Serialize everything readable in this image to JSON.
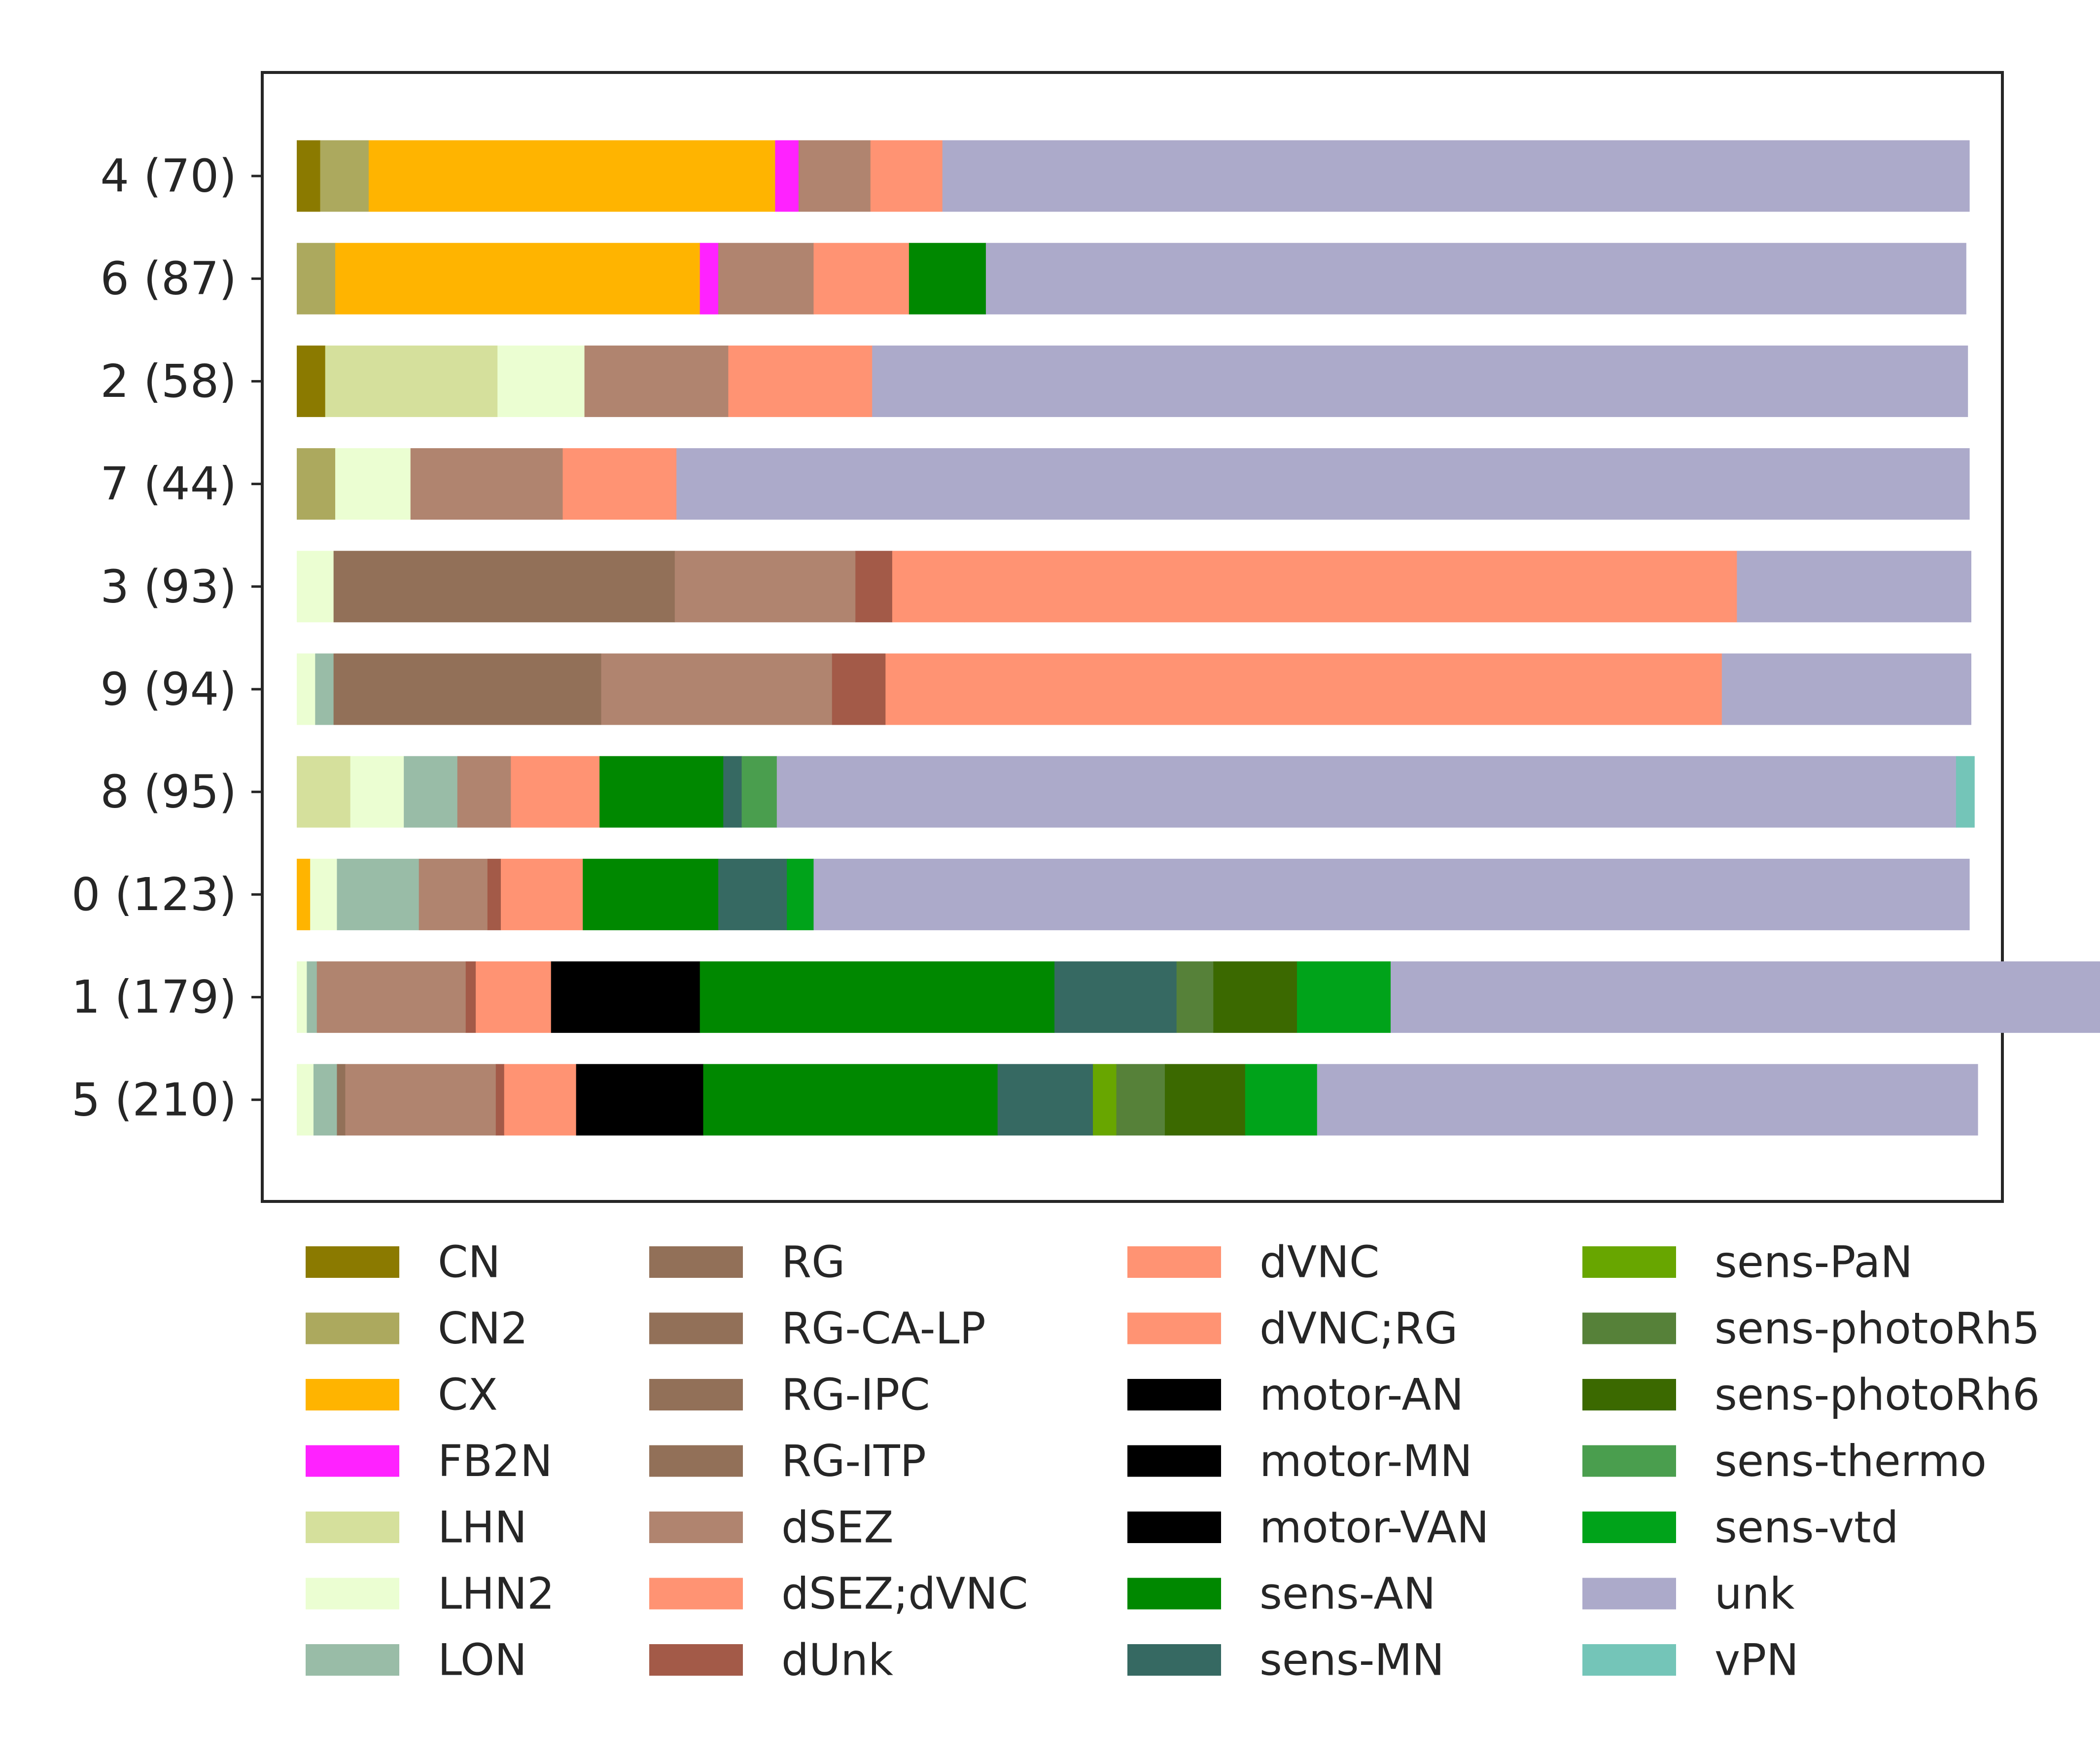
{
  "chart_data": {
    "type": "bar",
    "orientation": "horizontal",
    "stacked": true,
    "normalized": true,
    "categories": [
      "4 (70)",
      "6 (87)",
      "2 (58)",
      "7 (44)",
      "3 (93)",
      "9 (94)",
      "8 (95)",
      "0 (123)",
      "1 (179)",
      "5 (210)"
    ],
    "xlim": [
      0,
      1
    ],
    "legend_position": "bottom",
    "legend_columns": 4,
    "series": [
      {
        "name": "CN",
        "color": "#8b7a00",
        "values": [
          0.014,
          0,
          0.017,
          0,
          0,
          0,
          0,
          0,
          0,
          0
        ]
      },
      {
        "name": "CN2",
        "color": "#aca95e",
        "values": [
          0.029,
          0.023,
          0,
          0.023,
          0,
          0,
          0,
          0,
          0,
          0
        ]
      },
      {
        "name": "CX",
        "color": "#ffb400",
        "values": [
          0.243,
          0.218,
          0,
          0,
          0,
          0,
          0,
          0.008,
          0,
          0
        ]
      },
      {
        "name": "FB2N",
        "color": "#ff22ff",
        "values": [
          0.014,
          0.011,
          0,
          0,
          0,
          0,
          0,
          0,
          0,
          0
        ]
      },
      {
        "name": "LHN",
        "color": "#d5e09c",
        "values": [
          0,
          0,
          0.103,
          0,
          0,
          0,
          0.032,
          0,
          0,
          0
        ]
      },
      {
        "name": "LHN2",
        "color": "#ebfed2",
        "values": [
          0,
          0,
          0.052,
          0.045,
          0.022,
          0.011,
          0.032,
          0.016,
          0.006,
          0.01
        ]
      },
      {
        "name": "LON",
        "color": "#99bca7",
        "values": [
          0,
          0,
          0,
          0,
          0,
          0.011,
          0.032,
          0.049,
          0.006,
          0.014
        ]
      },
      {
        "name": "RG",
        "color": "#927058",
        "values": [
          0,
          0,
          0,
          0,
          0.204,
          0.16,
          0,
          0,
          0,
          0.005
        ]
      },
      {
        "name": "RG-CA-LP",
        "color": "#927058",
        "values": [
          0,
          0,
          0,
          0,
          0,
          0,
          0,
          0,
          0,
          0
        ]
      },
      {
        "name": "RG-IPC",
        "color": "#927058",
        "values": [
          0,
          0,
          0,
          0,
          0,
          0,
          0,
          0,
          0,
          0
        ]
      },
      {
        "name": "RG-ITP",
        "color": "#927058",
        "values": [
          0,
          0,
          0,
          0,
          0,
          0,
          0,
          0,
          0,
          0
        ]
      },
      {
        "name": "dSEZ",
        "color": "#b0846f",
        "values": [
          0.043,
          0.057,
          0.086,
          0.091,
          0.108,
          0.138,
          0.032,
          0.041,
          0.089,
          0.09
        ]
      },
      {
        "name": "dSEZ;dVNC",
        "color": "#ff9373",
        "values": [
          0,
          0,
          0,
          0,
          0,
          0,
          0,
          0,
          0,
          0
        ]
      },
      {
        "name": "dUnk",
        "color": "#a35a48",
        "values": [
          0,
          0,
          0,
          0,
          0.022,
          0.032,
          0,
          0.008,
          0.006,
          0.005
        ]
      },
      {
        "name": "dVNC",
        "color": "#ff9373",
        "values": [
          0.043,
          0.057,
          0.086,
          0.068,
          0.043,
          0.043,
          0.053,
          0.049,
          0.045,
          0.043
        ]
      },
      {
        "name": "dVNC;RG",
        "color": "#ff9373",
        "values": [
          0,
          0,
          0,
          0,
          0.462,
          0.457,
          0,
          0,
          0,
          0
        ]
      },
      {
        "name": "motor-AN",
        "color": "#000000",
        "values": [
          0,
          0,
          0,
          0,
          0,
          0,
          0,
          0,
          0.089,
          0.076
        ]
      },
      {
        "name": "motor-MN",
        "color": "#000000",
        "values": [
          0,
          0,
          0,
          0,
          0,
          0,
          0,
          0,
          0,
          0
        ]
      },
      {
        "name": "motor-VAN",
        "color": "#000000",
        "values": [
          0,
          0,
          0,
          0,
          0,
          0,
          0,
          0,
          0,
          0
        ]
      },
      {
        "name": "sens-AN",
        "color": "#008800",
        "values": [
          0,
          0.046,
          0,
          0,
          0,
          0,
          0.074,
          0.081,
          0.212,
          0.176
        ]
      },
      {
        "name": "sens-MN",
        "color": "#366962",
        "values": [
          0,
          0,
          0,
          0,
          0,
          0,
          0.011,
          0.041,
          0.073,
          0.057
        ]
      },
      {
        "name": "sens-PaN",
        "color": "#68a600",
        "values": [
          0,
          0,
          0,
          0,
          0,
          0,
          0,
          0,
          0,
          0.014
        ]
      },
      {
        "name": "sens-photoRh5",
        "color": "#568139",
        "values": [
          0,
          0,
          0,
          0,
          0,
          0,
          0,
          0,
          0.022,
          0.029
        ]
      },
      {
        "name": "sens-photoRh6",
        "color": "#3b6900",
        "values": [
          0,
          0,
          0,
          0,
          0,
          0,
          0,
          0,
          0.05,
          0.048
        ]
      },
      {
        "name": "sens-thermo",
        "color": "#4a9e4e",
        "values": [
          0,
          0,
          0,
          0,
          0,
          0,
          0.021,
          0,
          0,
          0
        ]
      },
      {
        "name": "sens-vtd",
        "color": "#00a31a",
        "values": [
          0,
          0,
          0,
          0,
          0,
          0,
          0,
          0.016,
          0.056,
          0.043
        ]
      },
      {
        "name": "unk",
        "color": "#acaaca",
        "values": [
          0.614,
          0.586,
          0.655,
          0.773,
          0.14,
          0.149,
          0.705,
          0.691,
          0.441,
          0.395
        ]
      },
      {
        "name": "vPN",
        "color": "#74c5b8",
        "values": [
          0,
          0,
          0,
          0,
          0,
          0,
          0.011,
          0,
          0,
          0
        ]
      }
    ]
  }
}
